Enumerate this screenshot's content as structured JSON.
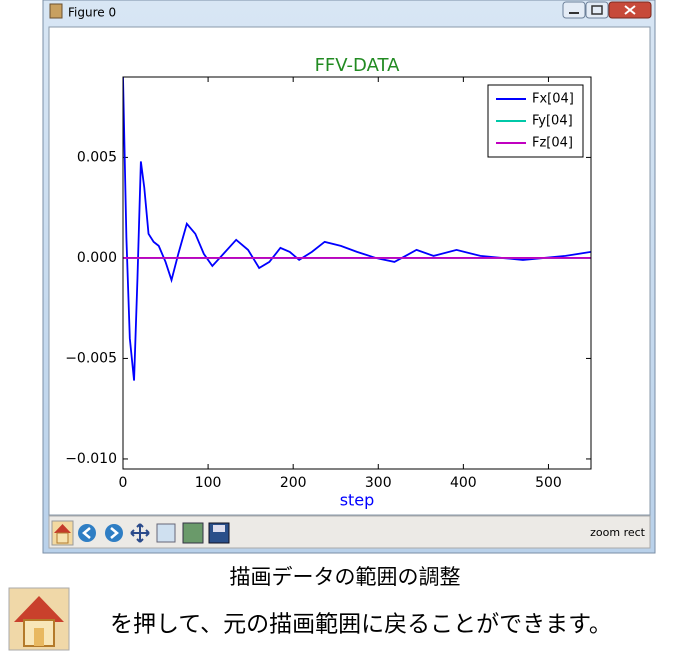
{
  "window": {
    "title": "Figure 0",
    "status": "zoom rect"
  },
  "chart_data": {
    "type": "line",
    "title": "FFV-DATA",
    "x_label": "step",
    "x": [
      0,
      4,
      8,
      13,
      17,
      21,
      25,
      30,
      36,
      42,
      50,
      57,
      65,
      75,
      85,
      95,
      105,
      118,
      133,
      147,
      160,
      172,
      185,
      196,
      207,
      222,
      237,
      256,
      275,
      297,
      319,
      332,
      345,
      365,
      392,
      420,
      445,
      470,
      495,
      520,
      550
    ],
    "series": [
      {
        "name": "Fx[04]",
        "color": "#0000ff",
        "values": [
          0.009,
          0.001,
          -0.004,
          -0.0061,
          -0.001,
          0.0048,
          0.0035,
          0.0012,
          0.0008,
          0.0006,
          -0.0002,
          -0.0011,
          0.0002,
          0.0017,
          0.0012,
          0.0002,
          -0.0004,
          0.0002,
          0.0009,
          0.0004,
          -0.0005,
          -0.0002,
          0.0005,
          0.0003,
          -0.0001,
          0.0003,
          0.0008,
          0.0006,
          0.0003,
          0.0,
          -0.0002,
          0.0001,
          0.0004,
          0.0001,
          0.0004,
          0.0001,
          0.0,
          -0.0001,
          0.0,
          0.0001,
          0.0003
        ]
      },
      {
        "name": "Fy[04]",
        "color": "#00c8a8",
        "values": [
          0,
          0,
          0,
          0,
          0,
          0,
          0,
          0,
          0,
          0,
          0,
          0,
          0,
          0,
          0,
          0,
          0,
          0,
          0,
          0,
          0,
          0,
          0,
          0,
          0,
          0,
          0,
          0,
          0,
          0,
          0,
          0,
          0,
          0,
          0,
          0,
          0,
          0,
          0,
          0,
          0
        ]
      },
      {
        "name": "Fz[04]",
        "color": "#c000c0",
        "values": [
          0,
          0,
          0,
          0,
          0,
          0,
          0,
          0,
          0,
          0,
          0,
          0,
          0,
          0,
          0,
          0,
          0,
          0,
          0,
          0,
          0,
          0,
          0,
          0,
          0,
          0,
          0,
          0,
          0,
          0,
          0,
          0,
          0,
          0,
          0,
          0,
          0,
          0,
          0,
          0,
          0
        ]
      }
    ],
    "xlim": [
      0,
      550
    ],
    "xticks": [
      0,
      100,
      200,
      300,
      400,
      500
    ],
    "ylim": [
      -0.0105,
      0.009
    ],
    "yticks": [
      {
        "value": -0.01,
        "label": "−0.010"
      },
      {
        "value": -0.005,
        "label": "−0.005"
      },
      {
        "value": 0,
        "label": "0.000"
      },
      0.005
    ],
    "legend": "upper right"
  },
  "caption": "描画データの範囲の調整",
  "instruction": "を押して、元の描画範囲に戻ることができます。"
}
